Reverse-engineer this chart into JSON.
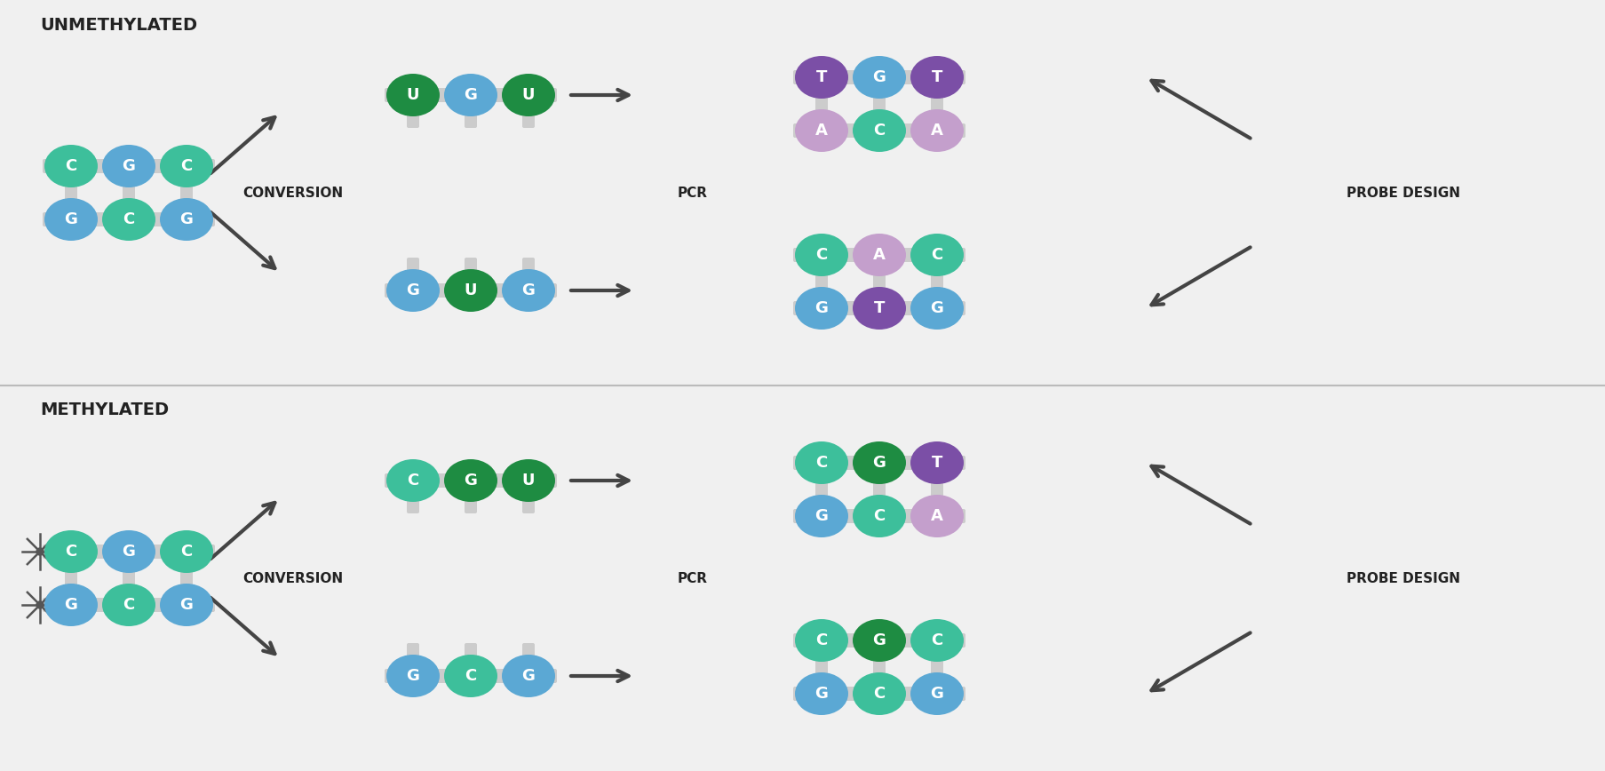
{
  "bg_color": "#f0f0f0",
  "text_color": "#222222",
  "arrow_color": "#444444",
  "bar_color": "#cccccc",
  "colors": {
    "teal": "#3dbf9b",
    "blue": "#5ba8d4",
    "dark_green": "#1e8c42",
    "purple": "#7b4fa6",
    "lavender": "#c49fcc",
    "light_blue": "#7db8e0"
  },
  "sections": [
    "UNMETHYLATED",
    "METHYLATED"
  ],
  "unmethylated": {
    "start_grid": [
      [
        "C",
        "G",
        "C"
      ],
      [
        "G",
        "C",
        "G"
      ]
    ],
    "start_colors": [
      [
        "teal",
        "blue",
        "teal"
      ],
      [
        "blue",
        "teal",
        "blue"
      ]
    ],
    "conversion_top": {
      "letters": [
        "U",
        "G",
        "U"
      ],
      "colors": [
        "dark_green",
        "blue",
        "dark_green"
      ]
    },
    "conversion_bot": {
      "letters": [
        "G",
        "U",
        "G"
      ],
      "colors": [
        "blue",
        "dark_green",
        "blue"
      ]
    },
    "pcr_top": [
      [
        "T",
        "G",
        "T"
      ],
      [
        "A",
        "C",
        "A"
      ]
    ],
    "pcr_top_colors": [
      [
        "purple",
        "blue",
        "purple"
      ],
      [
        "lavender",
        "teal",
        "lavender"
      ]
    ],
    "pcr_bot": [
      [
        "C",
        "A",
        "C"
      ],
      [
        "G",
        "T",
        "G"
      ]
    ],
    "pcr_bot_colors": [
      [
        "teal",
        "lavender",
        "teal"
      ],
      [
        "blue",
        "purple",
        "blue"
      ]
    ]
  },
  "methylated": {
    "start_grid": [
      [
        "C",
        "G",
        "C"
      ],
      [
        "G",
        "C",
        "G"
      ]
    ],
    "start_colors": [
      [
        "teal",
        "blue",
        "teal"
      ],
      [
        "blue",
        "teal",
        "blue"
      ]
    ],
    "conversion_top": {
      "letters": [
        "C",
        "G",
        "U"
      ],
      "colors": [
        "teal",
        "dark_green",
        "dark_green"
      ]
    },
    "conversion_bot": {
      "letters": [
        "G",
        "C",
        "G"
      ],
      "colors": [
        "blue",
        "teal",
        "blue"
      ]
    },
    "pcr_top": [
      [
        "C",
        "G",
        "T"
      ],
      [
        "G",
        "C",
        "A"
      ]
    ],
    "pcr_top_colors": [
      [
        "teal",
        "dark_green",
        "purple"
      ],
      [
        "blue",
        "teal",
        "lavender"
      ]
    ],
    "pcr_bot": [
      [
        "C",
        "G",
        "C"
      ],
      [
        "G",
        "C",
        "G"
      ]
    ],
    "pcr_bot_colors": [
      [
        "teal",
        "dark_green",
        "teal"
      ],
      [
        "blue",
        "teal",
        "blue"
      ]
    ]
  }
}
